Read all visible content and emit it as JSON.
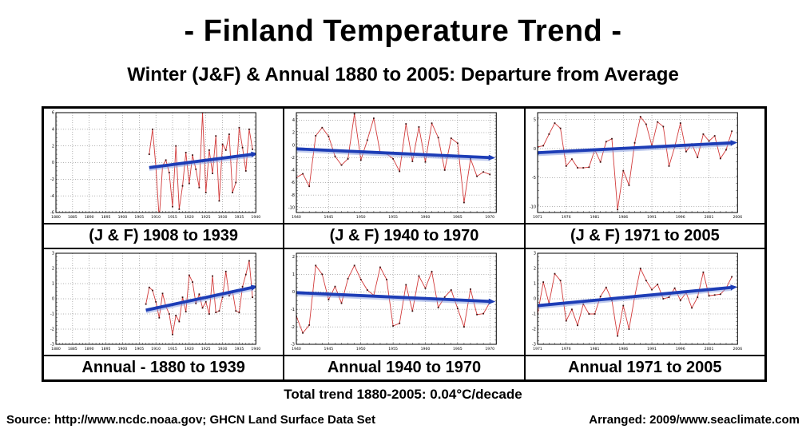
{
  "page": {
    "title": "- Finland Temperature Trend -",
    "subtitle": "Winter (J&F) & Annual 1880 to 2005: Departure from Average",
    "total_trend": "Total trend 1880-2005: 0.04°C/decade",
    "source": "Source: http://www.ncdc.noaa.gov; GHCN Land Surface Data Set",
    "arranged": "Arranged: 2009/www.seaclimate.com"
  },
  "colors": {
    "line": "#d23b3b",
    "marker": "#3c0f0f",
    "trend": "#1d3db6",
    "trend_glow": "#8399dd",
    "grid": "#666666",
    "frame": "#000000"
  },
  "chart_data": [
    {
      "type": "line",
      "caption": "(J & F) 1908 to 1939",
      "xlim": [
        1880,
        1940
      ],
      "xticks": [
        1880,
        1885,
        1890,
        1895,
        1900,
        1905,
        1910,
        1915,
        1920,
        1925,
        1930,
        1935,
        1940
      ],
      "ylim": [
        -6,
        6
      ],
      "yticks": [
        6,
        4,
        2,
        0,
        -2,
        -4,
        -6
      ],
      "start_year": 1908,
      "values": [
        1.0,
        4.0,
        -0.5,
        -6.8,
        -0.4,
        0.3,
        -1.2,
        -5.3,
        2.0,
        -5.6,
        -2.8,
        1.2,
        -2.5,
        0.9,
        -0.8,
        -3.0,
        6.0,
        -3.6,
        1.5,
        -1.3,
        3.2,
        -4.6,
        2.2,
        1.5,
        3.4,
        -3.6,
        -2.4,
        4.2,
        1.8,
        -1.0,
        4.0,
        1.6
      ],
      "trend": {
        "x1": 1908,
        "y1": -0.6,
        "x2": 1939,
        "y2": 1.0
      }
    },
    {
      "type": "line",
      "caption": "(J & F) 1940 to 1970",
      "xlim": [
        1940,
        1971
      ],
      "xticks": [
        1940,
        1945,
        1950,
        1955,
        1960,
        1965,
        1970
      ],
      "ylim": [
        -10.8,
        5.2
      ],
      "yticks": [
        4,
        2,
        0,
        -2,
        -4,
        -6,
        -8,
        -10
      ],
      "start_year": 1940,
      "values": [
        -5.2,
        -4.6,
        -6.6,
        1.5,
        2.8,
        1.4,
        -1.8,
        -3.2,
        -2.2,
        5.0,
        -2.4,
        0.8,
        4.3,
        -1.2,
        -1.4,
        -2.2,
        -4.2,
        3.4,
        -2.6,
        2.9,
        -2.7,
        3.5,
        1.2,
        -4.0,
        1.1,
        0.3,
        -9.2,
        -2.2,
        -5.0,
        -4.3,
        -4.7
      ],
      "trend": {
        "x1": 1940,
        "y1": -0.6,
        "x2": 1970,
        "y2": -2.0
      }
    },
    {
      "type": "line",
      "caption": "(J & F) 1971 to 2005",
      "xlim": [
        1971,
        2006
      ],
      "xticks": [
        1971,
        1976,
        1981,
        1986,
        1991,
        1996,
        2001,
        2006
      ],
      "ylim": [
        -11,
        6.2
      ],
      "yticks": [
        5,
        0,
        -5,
        -10
      ],
      "start_year": 1971,
      "values": [
        0.3,
        0.5,
        2.5,
        4.4,
        3.5,
        -3.0,
        -1.8,
        -3.3,
        -3.3,
        -3.2,
        -0.2,
        -2.3,
        1.2,
        1.7,
        -10.5,
        -3.8,
        -6.3,
        1.0,
        5.5,
        4.2,
        0.5,
        4.6,
        3.8,
        -3.0,
        0.3,
        4.4,
        -0.5,
        0.8,
        -1.5,
        2.5,
        1.3,
        2.2,
        -1.7,
        -0.2,
        3.0
      ],
      "trend": {
        "x1": 1971,
        "y1": -0.7,
        "x2": 2005,
        "y2": 1.0
      }
    },
    {
      "type": "line",
      "caption": "Annual - 1880 to 1939",
      "xlim": [
        1880,
        1940
      ],
      "xticks": [
        1880,
        1885,
        1890,
        1895,
        1900,
        1905,
        1910,
        1915,
        1920,
        1925,
        1930,
        1935,
        1940
      ],
      "ylim": [
        -3,
        3
      ],
      "yticks": [
        3,
        2,
        1,
        0,
        -1,
        -2,
        -3
      ],
      "start_year": 1907,
      "values": [
        -0.35,
        0.75,
        0.55,
        -0.2,
        -1.25,
        0.35,
        -0.5,
        -1.0,
        -2.35,
        -1.1,
        -1.5,
        0.1,
        -0.85,
        1.55,
        1.1,
        -0.3,
        0.3,
        -0.6,
        -0.2,
        -1.0,
        1.5,
        -0.9,
        -0.8,
        0.1,
        1.8,
        0.2,
        0.5,
        -0.8,
        -0.9,
        0.8,
        1.6,
        2.5,
        0.1
      ],
      "trend": {
        "x1": 1907,
        "y1": -0.75,
        "x2": 1939,
        "y2": 0.75
      }
    },
    {
      "type": "line",
      "caption": "Annual 1940 to 1970",
      "xlim": [
        1940,
        1971
      ],
      "xticks": [
        1940,
        1945,
        1950,
        1955,
        1960,
        1965,
        1970
      ],
      "ylim": [
        -3,
        2.2
      ],
      "yticks": [
        2,
        1,
        0,
        -1,
        -2,
        -3
      ],
      "start_year": 1940,
      "values": [
        -1.4,
        -2.35,
        -1.9,
        1.5,
        1.0,
        -0.45,
        0.3,
        -0.65,
        0.75,
        1.5,
        0.7,
        0.1,
        -0.2,
        1.4,
        0.7,
        -1.95,
        -1.8,
        0.4,
        -1.1,
        0.9,
        0.2,
        1.15,
        -0.9,
        -0.3,
        0.1,
        -0.95,
        -2.0,
        0.15,
        -1.3,
        -1.25,
        -0.6
      ],
      "trend": {
        "x1": 1940,
        "y1": -0.05,
        "x2": 1970,
        "y2": -0.55
      }
    },
    {
      "type": "line",
      "caption": "Annual 1971 to 2005",
      "xlim": [
        1971,
        2006
      ],
      "xticks": [
        1971,
        1976,
        1981,
        1986,
        1991,
        1996,
        2001,
        2006
      ],
      "ylim": [
        -3,
        3
      ],
      "yticks": [
        3,
        2,
        1,
        0,
        -1,
        -2,
        -3
      ],
      "start_year": 1971,
      "values": [
        -1.0,
        1.1,
        -0.3,
        1.65,
        1.2,
        -1.45,
        -0.7,
        -1.75,
        -0.35,
        -1.0,
        -1.0,
        0.15,
        0.75,
        -0.1,
        -2.45,
        -0.45,
        -2.0,
        0.15,
        2.0,
        1.2,
        0.6,
        0.95,
        0.0,
        0.1,
        0.7,
        -0.1,
        0.4,
        -0.6,
        0.1,
        1.75,
        0.2,
        0.25,
        0.3,
        0.7,
        1.45
      ],
      "trend": {
        "x1": 1971,
        "y1": -0.45,
        "x2": 2005,
        "y2": 0.75
      }
    }
  ]
}
